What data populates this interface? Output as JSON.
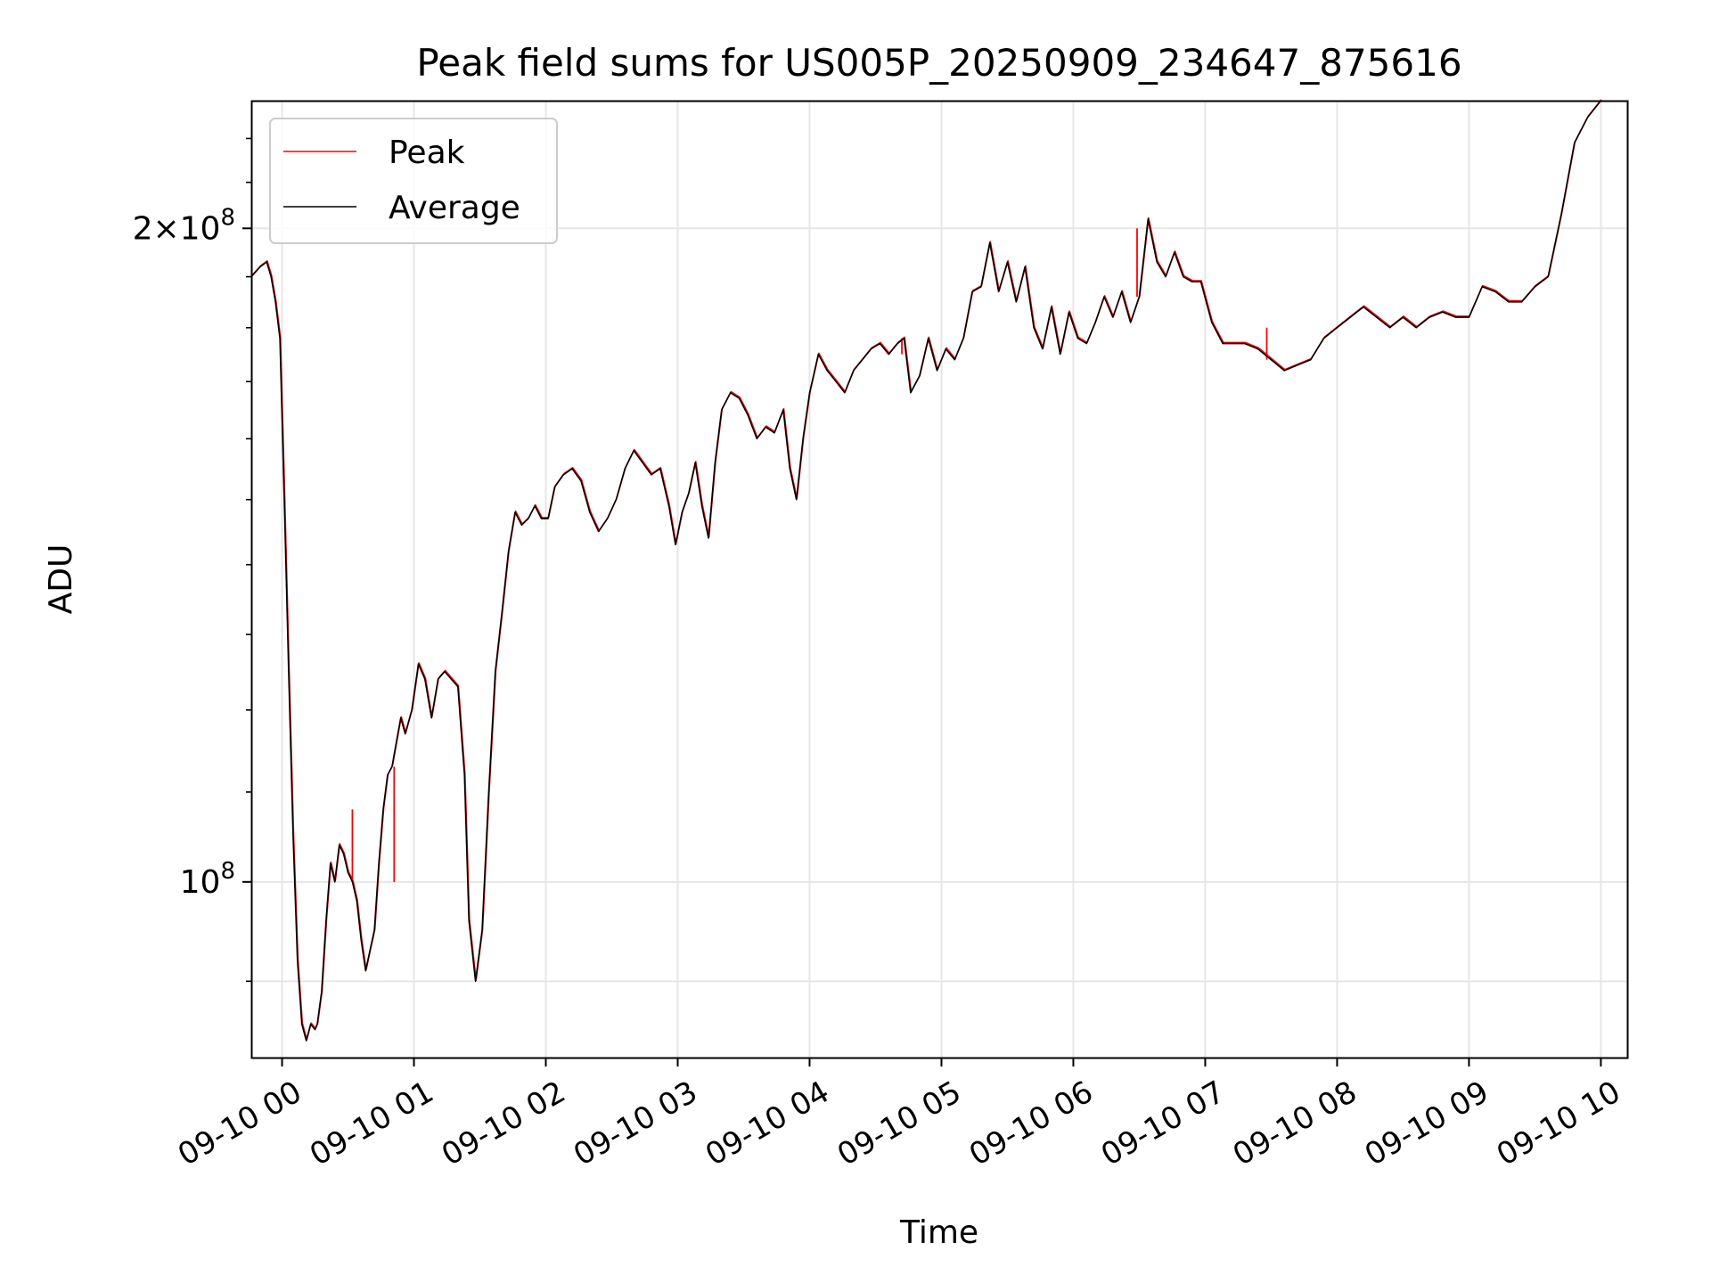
{
  "chart_data": {
    "type": "line",
    "title": "Peak field sums for US005P_20250909_234647_875616",
    "xlabel": "Time",
    "ylabel": "ADU",
    "yscale": "log",
    "ylim": [
      83000000,
      229000000
    ],
    "xlim": [
      "09-09 23:46",
      "09-10 10:12"
    ],
    "grid": true,
    "legend_position": "top-left",
    "x_tick_labels": [
      "09-10 00",
      "09-10 01",
      "09-10 02",
      "09-10 03",
      "09-10 04",
      "09-10 05",
      "09-10 06",
      "09-10 07",
      "09-10 08",
      "09-10 09",
      "09-10 10"
    ],
    "y_ticks": [
      {
        "value": 100000000,
        "base": "10",
        "exp": "8",
        "prefix": ""
      },
      {
        "value": 200000000,
        "base": "10",
        "exp": "8",
        "prefix": "2×"
      }
    ],
    "series": [
      {
        "name": "Peak",
        "color": "#ff0000"
      },
      {
        "name": "Average",
        "color": "#000000"
      }
    ],
    "x": [
      "09-09 23:46",
      "09-09 23:50",
      "09-09 23:53",
      "09-09 23:55",
      "09-09 23:57",
      "09-09 23:59",
      "09-10 00:01",
      "09-10 00:03",
      "09-10 00:05",
      "09-10 00:07",
      "09-10 00:09",
      "09-10 00:11",
      "09-10 00:13",
      "09-10 00:15",
      "09-10 00:16",
      "09-10 00:18",
      "09-10 00:20",
      "09-10 00:22",
      "09-10 00:24",
      "09-10 00:26",
      "09-10 00:28",
      "09-10 00:30",
      "09-10 00:32",
      "09-10 00:34",
      "09-10 00:36",
      "09-10 00:38",
      "09-10 00:40",
      "09-10 00:42",
      "09-10 00:44",
      "09-10 00:46",
      "09-10 00:48",
      "09-10 00:50",
      "09-10 00:52",
      "09-10 00:54",
      "09-10 00:56",
      "09-10 00:59",
      "09-10 01:02",
      "09-10 01:05",
      "09-10 01:08",
      "09-10 01:11",
      "09-10 01:14",
      "09-10 01:17",
      "09-10 01:20",
      "09-10 01:23",
      "09-10 01:25",
      "09-10 01:28",
      "09-10 01:31",
      "09-10 01:34",
      "09-10 01:37",
      "09-10 01:40",
      "09-10 01:43",
      "09-10 01:46",
      "09-10 01:49",
      "09-10 01:52",
      "09-10 01:55",
      "09-10 01:58",
      "09-10 02:01",
      "09-10 02:04",
      "09-10 02:08",
      "09-10 02:12",
      "09-10 02:16",
      "09-10 02:20",
      "09-10 02:24",
      "09-10 02:28",
      "09-10 02:32",
      "09-10 02:36",
      "09-10 02:40",
      "09-10 02:44",
      "09-10 02:48",
      "09-10 02:52",
      "09-10 02:56",
      "09-10 02:59",
      "09-10 03:02",
      "09-10 03:05",
      "09-10 03:08",
      "09-10 03:11",
      "09-10 03:14",
      "09-10 03:17",
      "09-10 03:20",
      "09-10 03:24",
      "09-10 03:28",
      "09-10 03:32",
      "09-10 03:36",
      "09-10 03:40",
      "09-10 03:44",
      "09-10 03:48",
      "09-10 03:51",
      "09-10 03:54",
      "09-10 03:57",
      "09-10 04:00",
      "09-10 04:04",
      "09-10 04:08",
      "09-10 04:12",
      "09-10 04:16",
      "09-10 04:20",
      "09-10 04:24",
      "09-10 04:28",
      "09-10 04:32",
      "09-10 04:36",
      "09-10 04:40",
      "09-10 04:43",
      "09-10 04:46",
      "09-10 04:50",
      "09-10 04:54",
      "09-10 04:58",
      "09-10 05:02",
      "09-10 05:06",
      "09-10 05:10",
      "09-10 05:14",
      "09-10 05:18",
      "09-10 05:22",
      "09-10 05:26",
      "09-10 05:30",
      "09-10 05:34",
      "09-10 05:38",
      "09-10 05:42",
      "09-10 05:46",
      "09-10 05:50",
      "09-10 05:54",
      "09-10 05:58",
      "09-10 06:02",
      "09-10 06:06",
      "09-10 06:10",
      "09-10 06:14",
      "09-10 06:18",
      "09-10 06:22",
      "09-10 06:26",
      "09-10 06:30",
      "09-10 06:34",
      "09-10 06:38",
      "09-10 06:42",
      "09-10 06:46",
      "09-10 06:50",
      "09-10 06:54",
      "09-10 06:58",
      "09-10 07:03",
      "09-10 07:08",
      "09-10 07:13",
      "09-10 07:18",
      "09-10 07:24",
      "09-10 07:30",
      "09-10 07:36",
      "09-10 07:42",
      "09-10 07:48",
      "09-10 07:54",
      "09-10 08:00",
      "09-10 08:06",
      "09-10 08:12",
      "09-10 08:18",
      "09-10 08:24",
      "09-10 08:30",
      "09-10 08:36",
      "09-10 08:42",
      "09-10 08:48",
      "09-10 08:54",
      "09-10 09:00",
      "09-10 09:06",
      "09-10 09:12",
      "09-10 09:18",
      "09-10 09:24",
      "09-10 09:30",
      "09-10 09:36",
      "09-10 09:42",
      "09-10 09:48",
      "09-10 09:54",
      "09-10 10:00",
      "09-10 10:04",
      "09-10 10:08",
      "09-10 10:12"
    ],
    "average": [
      190000000,
      192000000,
      193000000,
      190000000,
      185000000,
      178000000,
      150000000,
      125000000,
      105000000,
      92000000,
      86000000,
      84500000,
      86000000,
      85500000,
      86000000,
      89000000,
      96000000,
      102000000,
      100000000,
      104000000,
      103000000,
      101000000,
      100000000,
      98000000,
      94000000,
      91000000,
      93000000,
      95000000,
      102000000,
      108000000,
      112000000,
      113000000,
      116000000,
      119000000,
      117000000,
      120000000,
      126000000,
      124000000,
      119000000,
      124000000,
      125000000,
      124000000,
      123000000,
      112000000,
      96000000,
      90000000,
      95000000,
      110000000,
      125000000,
      133000000,
      142000000,
      148000000,
      146000000,
      147000000,
      149000000,
      147000000,
      147000000,
      152000000,
      154000000,
      155000000,
      153000000,
      148000000,
      145000000,
      147000000,
      150000000,
      155000000,
      158000000,
      156000000,
      154000000,
      155000000,
      149000000,
      143000000,
      148000000,
      151000000,
      156000000,
      149000000,
      144000000,
      156000000,
      165000000,
      168000000,
      167000000,
      164000000,
      160000000,
      162000000,
      161000000,
      165000000,
      155000000,
      150000000,
      160000000,
      168000000,
      175000000,
      172000000,
      170000000,
      168000000,
      172000000,
      174000000,
      176000000,
      177000000,
      175000000,
      177000000,
      178000000,
      168000000,
      171000000,
      178000000,
      172000000,
      176000000,
      174000000,
      178000000,
      187000000,
      188000000,
      197000000,
      187000000,
      193000000,
      185000000,
      192000000,
      180000000,
      176000000,
      184000000,
      175000000,
      183000000,
      178000000,
      177000000,
      181000000,
      186000000,
      182000000,
      187000000,
      181000000,
      186000000,
      202000000,
      193000000,
      190000000,
      195000000,
      190000000,
      189000000,
      189000000,
      181000000,
      177000000,
      177000000,
      177000000,
      176000000,
      174000000,
      172000000,
      173000000,
      174000000,
      178000000,
      180000000,
      182000000,
      184000000,
      182000000,
      180000000,
      182000000,
      180000000,
      182000000,
      183000000,
      182000000,
      182000000,
      188000000,
      187000000,
      185000000,
      185000000,
      188000000,
      190000000,
      203000000,
      219000000,
      225000000,
      229000000
    ],
    "peak_spikes": [
      {
        "x": "09-10 00:32",
        "y": 108000000
      },
      {
        "x": "09-10 00:51",
        "y": 100000000
      },
      {
        "x": "09-10 04:42",
        "y": 175000000
      },
      {
        "x": "09-10 06:29",
        "y": 200000000
      },
      {
        "x": "09-10 07:28",
        "y": 180000000
      }
    ]
  }
}
